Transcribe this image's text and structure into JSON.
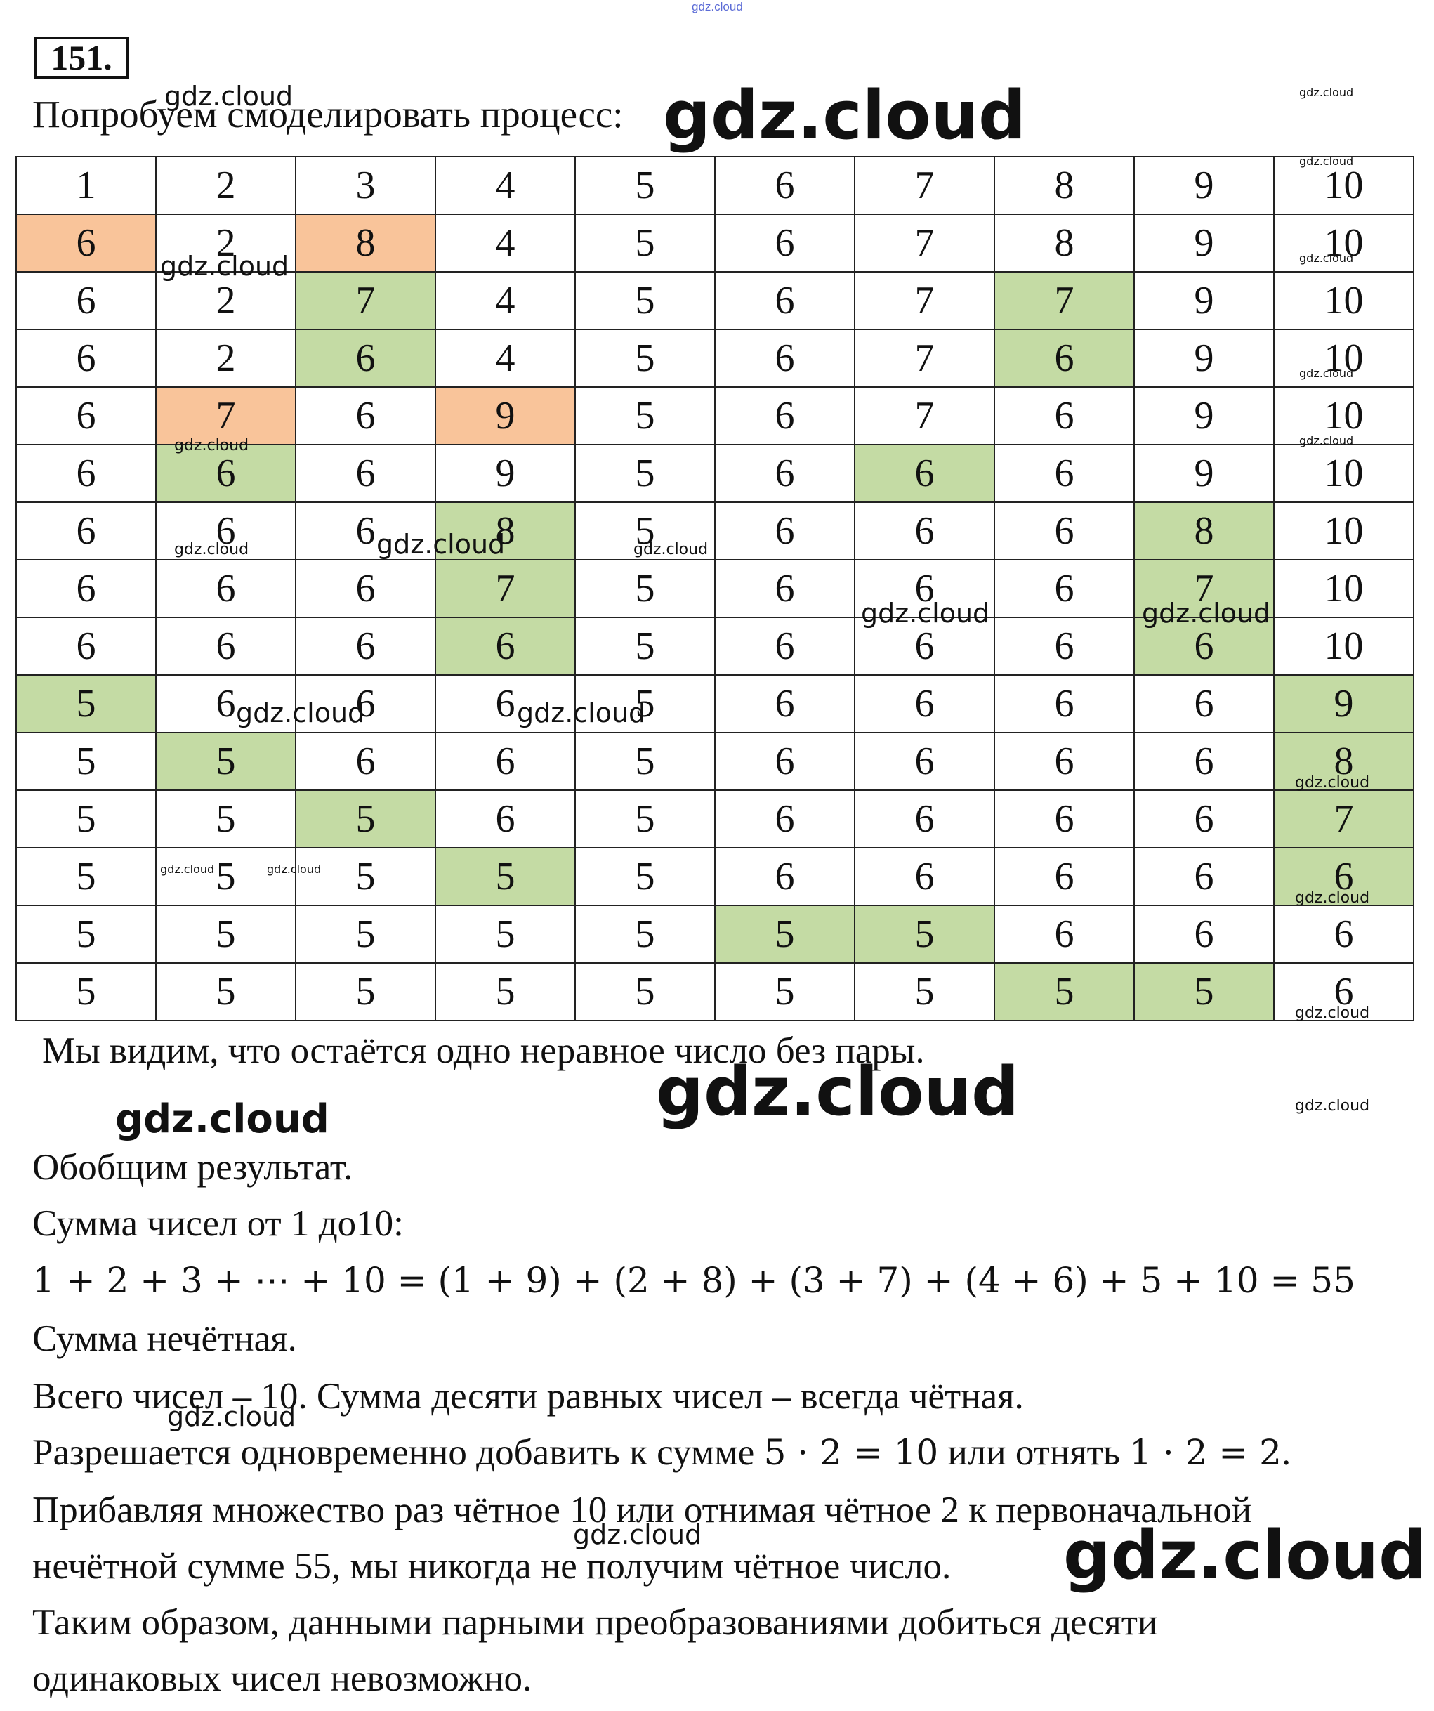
{
  "watermark": "gdz.cloud",
  "task_number": "151.",
  "intro": "Попробуем смоделировать процесс:",
  "table": {
    "rows": [
      [
        {
          "v": "1",
          "c": ""
        },
        {
          "v": "2",
          "c": ""
        },
        {
          "v": "3",
          "c": ""
        },
        {
          "v": "4",
          "c": ""
        },
        {
          "v": "5",
          "c": ""
        },
        {
          "v": "6",
          "c": ""
        },
        {
          "v": "7",
          "c": ""
        },
        {
          "v": "8",
          "c": ""
        },
        {
          "v": "9",
          "c": ""
        },
        {
          "v": "10",
          "c": ""
        }
      ],
      [
        {
          "v": "6",
          "c": "orange"
        },
        {
          "v": "2",
          "c": ""
        },
        {
          "v": "8",
          "c": "orange"
        },
        {
          "v": "4",
          "c": ""
        },
        {
          "v": "5",
          "c": ""
        },
        {
          "v": "6",
          "c": ""
        },
        {
          "v": "7",
          "c": ""
        },
        {
          "v": "8",
          "c": ""
        },
        {
          "v": "9",
          "c": ""
        },
        {
          "v": "10",
          "c": ""
        }
      ],
      [
        {
          "v": "6",
          "c": ""
        },
        {
          "v": "2",
          "c": ""
        },
        {
          "v": "7",
          "c": "green"
        },
        {
          "v": "4",
          "c": ""
        },
        {
          "v": "5",
          "c": ""
        },
        {
          "v": "6",
          "c": ""
        },
        {
          "v": "7",
          "c": ""
        },
        {
          "v": "7",
          "c": "green"
        },
        {
          "v": "9",
          "c": ""
        },
        {
          "v": "10",
          "c": ""
        }
      ],
      [
        {
          "v": "6",
          "c": ""
        },
        {
          "v": "2",
          "c": ""
        },
        {
          "v": "6",
          "c": "green"
        },
        {
          "v": "4",
          "c": ""
        },
        {
          "v": "5",
          "c": ""
        },
        {
          "v": "6",
          "c": ""
        },
        {
          "v": "7",
          "c": ""
        },
        {
          "v": "6",
          "c": "green"
        },
        {
          "v": "9",
          "c": ""
        },
        {
          "v": "10",
          "c": ""
        }
      ],
      [
        {
          "v": "6",
          "c": ""
        },
        {
          "v": "7",
          "c": "orange"
        },
        {
          "v": "6",
          "c": ""
        },
        {
          "v": "9",
          "c": "orange"
        },
        {
          "v": "5",
          "c": ""
        },
        {
          "v": "6",
          "c": ""
        },
        {
          "v": "7",
          "c": ""
        },
        {
          "v": "6",
          "c": ""
        },
        {
          "v": "9",
          "c": ""
        },
        {
          "v": "10",
          "c": ""
        }
      ],
      [
        {
          "v": "6",
          "c": ""
        },
        {
          "v": "6",
          "c": "green"
        },
        {
          "v": "6",
          "c": ""
        },
        {
          "v": "9",
          "c": ""
        },
        {
          "v": "5",
          "c": ""
        },
        {
          "v": "6",
          "c": ""
        },
        {
          "v": "6",
          "c": "green"
        },
        {
          "v": "6",
          "c": ""
        },
        {
          "v": "9",
          "c": ""
        },
        {
          "v": "10",
          "c": ""
        }
      ],
      [
        {
          "v": "6",
          "c": ""
        },
        {
          "v": "6",
          "c": ""
        },
        {
          "v": "6",
          "c": ""
        },
        {
          "v": "8",
          "c": "green"
        },
        {
          "v": "5",
          "c": ""
        },
        {
          "v": "6",
          "c": ""
        },
        {
          "v": "6",
          "c": ""
        },
        {
          "v": "6",
          "c": ""
        },
        {
          "v": "8",
          "c": "green"
        },
        {
          "v": "10",
          "c": ""
        }
      ],
      [
        {
          "v": "6",
          "c": ""
        },
        {
          "v": "6",
          "c": ""
        },
        {
          "v": "6",
          "c": ""
        },
        {
          "v": "7",
          "c": "green"
        },
        {
          "v": "5",
          "c": ""
        },
        {
          "v": "6",
          "c": ""
        },
        {
          "v": "6",
          "c": ""
        },
        {
          "v": "6",
          "c": ""
        },
        {
          "v": "7",
          "c": "green"
        },
        {
          "v": "10",
          "c": ""
        }
      ],
      [
        {
          "v": "6",
          "c": ""
        },
        {
          "v": "6",
          "c": ""
        },
        {
          "v": "6",
          "c": ""
        },
        {
          "v": "6",
          "c": "green"
        },
        {
          "v": "5",
          "c": ""
        },
        {
          "v": "6",
          "c": ""
        },
        {
          "v": "6",
          "c": ""
        },
        {
          "v": "6",
          "c": ""
        },
        {
          "v": "6",
          "c": "green"
        },
        {
          "v": "10",
          "c": ""
        }
      ],
      [
        {
          "v": "5",
          "c": "green"
        },
        {
          "v": "6",
          "c": ""
        },
        {
          "v": "6",
          "c": ""
        },
        {
          "v": "6",
          "c": ""
        },
        {
          "v": "5",
          "c": ""
        },
        {
          "v": "6",
          "c": ""
        },
        {
          "v": "6",
          "c": ""
        },
        {
          "v": "6",
          "c": ""
        },
        {
          "v": "6",
          "c": ""
        },
        {
          "v": "9",
          "c": "green"
        }
      ],
      [
        {
          "v": "5",
          "c": ""
        },
        {
          "v": "5",
          "c": "green"
        },
        {
          "v": "6",
          "c": ""
        },
        {
          "v": "6",
          "c": ""
        },
        {
          "v": "5",
          "c": ""
        },
        {
          "v": "6",
          "c": ""
        },
        {
          "v": "6",
          "c": ""
        },
        {
          "v": "6",
          "c": ""
        },
        {
          "v": "6",
          "c": ""
        },
        {
          "v": "8",
          "c": "green"
        }
      ],
      [
        {
          "v": "5",
          "c": ""
        },
        {
          "v": "5",
          "c": ""
        },
        {
          "v": "5",
          "c": "green"
        },
        {
          "v": "6",
          "c": ""
        },
        {
          "v": "5",
          "c": ""
        },
        {
          "v": "6",
          "c": ""
        },
        {
          "v": "6",
          "c": ""
        },
        {
          "v": "6",
          "c": ""
        },
        {
          "v": "6",
          "c": ""
        },
        {
          "v": "7",
          "c": "green"
        }
      ],
      [
        {
          "v": "5",
          "c": ""
        },
        {
          "v": "5",
          "c": ""
        },
        {
          "v": "5",
          "c": ""
        },
        {
          "v": "5",
          "c": "green"
        },
        {
          "v": "5",
          "c": ""
        },
        {
          "v": "6",
          "c": ""
        },
        {
          "v": "6",
          "c": ""
        },
        {
          "v": "6",
          "c": ""
        },
        {
          "v": "6",
          "c": ""
        },
        {
          "v": "6",
          "c": "green"
        }
      ],
      [
        {
          "v": "5",
          "c": ""
        },
        {
          "v": "5",
          "c": ""
        },
        {
          "v": "5",
          "c": ""
        },
        {
          "v": "5",
          "c": ""
        },
        {
          "v": "5",
          "c": ""
        },
        {
          "v": "5",
          "c": "green"
        },
        {
          "v": "5",
          "c": "green"
        },
        {
          "v": "6",
          "c": ""
        },
        {
          "v": "6",
          "c": ""
        },
        {
          "v": "6",
          "c": ""
        }
      ],
      [
        {
          "v": "5",
          "c": ""
        },
        {
          "v": "5",
          "c": ""
        },
        {
          "v": "5",
          "c": ""
        },
        {
          "v": "5",
          "c": ""
        },
        {
          "v": "5",
          "c": ""
        },
        {
          "v": "5",
          "c": ""
        },
        {
          "v": "5",
          "c": ""
        },
        {
          "v": "5",
          "c": "green"
        },
        {
          "v": "5",
          "c": "green"
        },
        {
          "v": "6",
          "c": ""
        }
      ]
    ]
  },
  "conclusion": "Мы видим, что остаётся одно неравное число без пары.",
  "summary": {
    "generalize": "Обобщим результат.",
    "sum_label": "Сумма чисел от 1 до10:",
    "sum_equation": "1 + 2 + 3 + ⋯ + 10 = (1 + 9) + (2 + 8) + (3 + 7) + (4 + 6) + 5 + 10 = 55",
    "odd_sum": "Сумма нечётная.",
    "total_count": "Всего чисел – 10. Сумма десяти равных чисел – всегда чётная.",
    "allowed_prefix": "Разрешается одновременно добавить к сумме ",
    "allowed_math_1": "5 · 2 = 10",
    "allowed_middle": " или отнять ",
    "allowed_math_2": "1 · 2 = 2",
    "allowed_suffix": ".",
    "adding_line_1": "Прибавляя множество раз чётное 10 или отнимая чётное 2 к первоначальной",
    "adding_line_2": "нечётной сумме 55, мы никогда не получим чётное число.",
    "final_line_1": "Таким образом, данными парными преобразованиями добиться десяти",
    "final_line_2": "одинаковых чисел невозможно."
  }
}
